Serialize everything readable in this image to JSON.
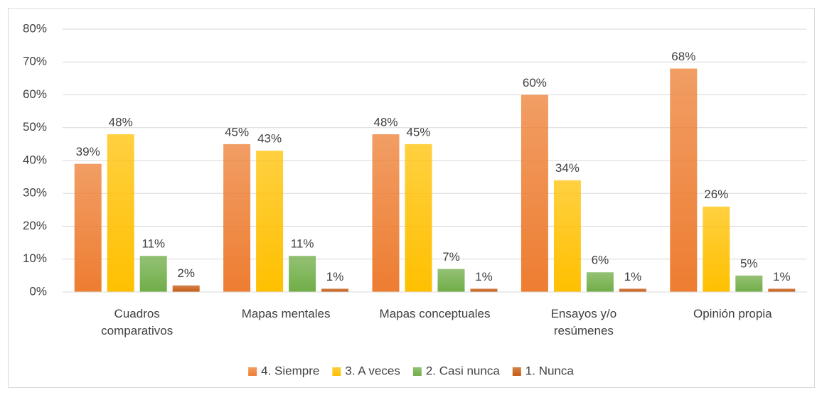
{
  "chart_data": {
    "type": "bar",
    "categories": [
      "Cuadros\ncomparativos",
      "Mapas mentales",
      "Mapas conceptuales",
      "Ensayos y/o\nresúmenes",
      "Opinión propia"
    ],
    "series": [
      {
        "name": "4. Siempre",
        "color": "#ed7d31",
        "values": [
          39,
          45,
          48,
          60,
          68
        ],
        "value_labels": [
          "39%",
          "45%",
          "48%",
          "60%",
          "68%"
        ]
      },
      {
        "name": "3. A veces",
        "color": "#ffc000",
        "values": [
          48,
          43,
          45,
          34,
          26
        ],
        "value_labels": [
          "48%",
          "43%",
          "45%",
          "34%",
          "26%"
        ]
      },
      {
        "name": "2. Casi nunca",
        "color": "#70ad47",
        "values": [
          11,
          11,
          7,
          6,
          5
        ],
        "value_labels": [
          "11%",
          "11%",
          "7%",
          "6%",
          "5%"
        ]
      },
      {
        "name": "1. Nunca",
        "color": "#c55a11",
        "values": [
          2,
          1,
          1,
          1,
          1
        ],
        "value_labels": [
          "2%",
          "1%",
          "1%",
          "1%",
          "1%"
        ]
      }
    ],
    "ylim": [
      0,
      80
    ],
    "yticks": [
      {
        "value": 0,
        "label": "0%"
      },
      {
        "value": 10,
        "label": "10%"
      },
      {
        "value": 20,
        "label": "20%"
      },
      {
        "value": 30,
        "label": "30%"
      },
      {
        "value": 40,
        "label": "40%"
      },
      {
        "value": 50,
        "label": "50%"
      },
      {
        "value": 60,
        "label": "60%"
      },
      {
        "value": 70,
        "label": "70%"
      },
      {
        "value": 80,
        "label": "80%"
      }
    ],
    "grid": true,
    "legend": "bottom"
  }
}
